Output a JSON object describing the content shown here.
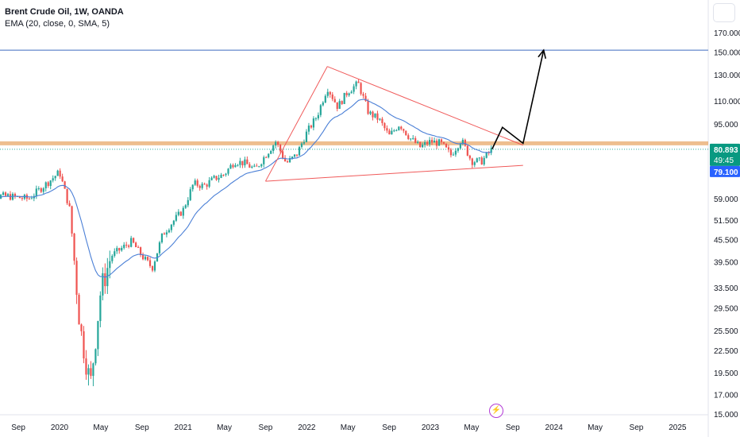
{
  "legend": {
    "symbol": "Brent Crude Oil, 1W, OANDA",
    "indicator": "EMA (20, close, 0, SMA, 5)"
  },
  "colors": {
    "up": "#26a69a",
    "down": "#ef5350",
    "ema": "#4a7fd6",
    "trendline": "#f05a5a",
    "resistance": "#e8a869",
    "target_line": "#3f6bbf",
    "projection": "#000000",
    "badge_price": "#089981",
    "badge_ema": "#2962ff"
  },
  "badges": {
    "price": "80.893",
    "countdown": "49:45",
    "ema": "79.100"
  },
  "toolbar": {
    "replay_icon": "lightning-icon"
  },
  "chart_data": {
    "type": "candlestick",
    "title": "Brent Crude Oil, 1W, OANDA",
    "y_scale": "log",
    "y_ticks": [
      "170.000",
      "150.000",
      "130.000",
      "110.000",
      "95.000",
      "80.893",
      "79.100",
      "59.000",
      "51.500",
      "45.500",
      "39.500",
      "33.500",
      "29.500",
      "25.500",
      "22.500",
      "19.500",
      "17.000",
      "15.000"
    ],
    "x_ticks": [
      "Sep",
      "2020",
      "May",
      "Sep",
      "2021",
      "May",
      "Sep",
      "2022",
      "May",
      "Sep",
      "2023",
      "May",
      "Sep",
      "2024",
      "May",
      "Sep",
      "2025"
    ],
    "horizontal_lines": [
      {
        "name": "target",
        "value": 152
      },
      {
        "name": "resistance",
        "value": 84
      }
    ],
    "triangle": {
      "upper": [
        [
          "2022-03",
          137
        ],
        [
          "2023-10",
          83
        ]
      ],
      "lower": [
        [
          "2021-09",
          66
        ],
        [
          "2023-10",
          73
        ]
      ],
      "apex_left": [
        "2021-09",
        66
      ]
    },
    "projection_path": [
      [
        "2023-07",
        81
      ],
      [
        "2023-08",
        93
      ],
      [
        "2023-10",
        84
      ],
      [
        "2023-12",
        152
      ]
    ],
    "ohlc_path": [
      [
        "2019-08",
        60
      ],
      [
        "2019-10",
        59
      ],
      [
        "2019-12",
        66
      ],
      [
        "2020-01",
        70
      ],
      [
        "2020-02",
        55
      ],
      [
        "2020-03",
        26
      ],
      [
        "2020-04",
        18
      ],
      [
        "2020-05",
        33
      ],
      [
        "2020-06",
        41
      ],
      [
        "2020-07",
        43
      ],
      [
        "2020-08",
        45
      ],
      [
        "2020-09",
        41
      ],
      [
        "2020-10",
        38
      ],
      [
        "2020-11",
        47
      ],
      [
        "2020-12",
        51
      ],
      [
        "2021-01",
        55
      ],
      [
        "2021-02",
        65
      ],
      [
        "2021-03",
        64
      ],
      [
        "2021-04",
        67
      ],
      [
        "2021-05",
        69
      ],
      [
        "2021-06",
        75
      ],
      [
        "2021-07",
        74
      ],
      [
        "2021-08",
        71
      ],
      [
        "2021-09",
        78
      ],
      [
        "2021-10",
        85
      ],
      [
        "2021-11",
        74
      ],
      [
        "2021-12",
        78
      ],
      [
        "2022-01",
        90
      ],
      [
        "2022-02",
        100
      ],
      [
        "2022-03",
        120
      ],
      [
        "2022-04",
        106
      ],
      [
        "2022-05",
        117
      ],
      [
        "2022-06",
        123
      ],
      [
        "2022-07",
        102
      ],
      [
        "2022-08",
        98
      ],
      [
        "2022-09",
        88
      ],
      [
        "2022-10",
        95
      ],
      [
        "2022-11",
        87
      ],
      [
        "2022-12",
        82
      ],
      [
        "2023-01",
        85
      ],
      [
        "2023-02",
        84
      ],
      [
        "2023-03",
        78
      ],
      [
        "2023-04",
        86
      ],
      [
        "2023-05",
        75
      ],
      [
        "2023-06",
        75
      ],
      [
        "2023-07",
        81
      ]
    ]
  }
}
